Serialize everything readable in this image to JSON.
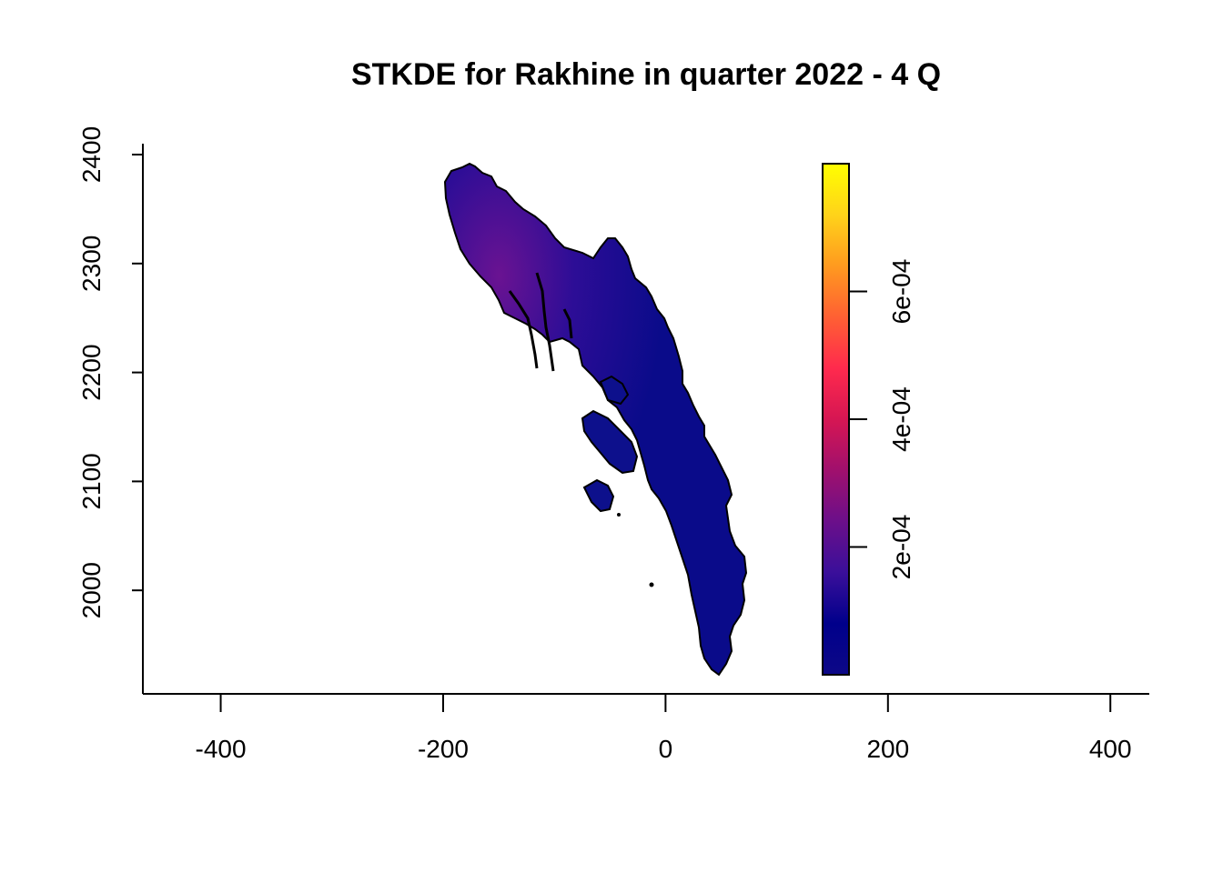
{
  "chart_data": {
    "type": "heatmap",
    "title": "STKDE for Rakhine in quarter 2022 - 4 Q",
    "xlabel": "",
    "ylabel": "",
    "xlim": [
      -470,
      435
    ],
    "ylim": [
      1905,
      2410
    ],
    "x_ticks": [
      {
        "value": -400,
        "label": "-400"
      },
      {
        "value": -200,
        "label": "-200"
      },
      {
        "value": 0,
        "label": "0"
      },
      {
        "value": 200,
        "label": "200"
      },
      {
        "value": 400,
        "label": "400"
      }
    ],
    "y_ticks": [
      {
        "value": 2000,
        "label": "2000"
      },
      {
        "value": 2100,
        "label": "2100"
      },
      {
        "value": 2200,
        "label": "2200"
      },
      {
        "value": 2300,
        "label": "2300"
      },
      {
        "value": 2400,
        "label": "2400"
      }
    ],
    "legend": {
      "placement": "right",
      "range": [
        0,
        0.0008
      ],
      "ticks": [
        {
          "value": 0.0002,
          "label": "2e-04"
        },
        {
          "value": 0.0004,
          "label": "4e-04"
        },
        {
          "value": 0.0006,
          "label": "6e-04"
        }
      ],
      "colors": [
        "#0d0887",
        "#00008b",
        "#3a0f9a",
        "#6b0f8a",
        "#a0106d",
        "#d61653",
        "#ff2a4d",
        "#ff6033",
        "#ff9a1f",
        "#ffd31a",
        "#ffff00"
      ]
    },
    "region": {
      "name": "Rakhine",
      "fill_low": "#0b0f8c",
      "fill_high": "#5a1590",
      "outline": "#000000"
    }
  }
}
